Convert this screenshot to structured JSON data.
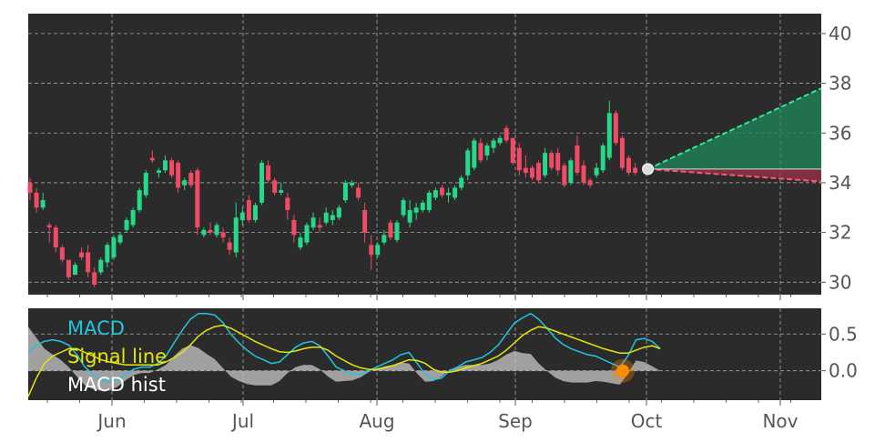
{
  "chart_data": [
    {
      "type": "candlestick",
      "title": "",
      "x_tick_labels": [
        "Jun",
        "Jul",
        "Aug",
        "Sep",
        "Oct",
        "Nov"
      ],
      "y_tick_labels": [
        "30",
        "32",
        "34",
        "36",
        "38",
        "40"
      ],
      "ylim": [
        29.5,
        40.8
      ],
      "grid": true,
      "y_axis_side": "right",
      "colors": {
        "up": "#26d98a",
        "down": "#f04a65",
        "background": "#2b2b2b",
        "grid": "#a8a8a8"
      },
      "candles": [
        {
          "o": 34.0,
          "h": 34.2,
          "l": 33.3,
          "c": 33.6
        },
        {
          "o": 33.6,
          "h": 33.8,
          "l": 32.8,
          "c": 33.0
        },
        {
          "o": 33.0,
          "h": 33.6,
          "l": 32.9,
          "c": 33.3
        },
        {
          "o": 32.3,
          "h": 32.4,
          "l": 31.6,
          "c": 32.2
        },
        {
          "o": 32.2,
          "h": 32.3,
          "l": 31.2,
          "c": 31.4
        },
        {
          "o": 31.4,
          "h": 31.5,
          "l": 30.8,
          "c": 30.9
        },
        {
          "o": 30.9,
          "h": 30.9,
          "l": 30.1,
          "c": 30.2
        },
        {
          "o": 30.3,
          "h": 30.8,
          "l": 30.3,
          "c": 30.7
        },
        {
          "o": 31.2,
          "h": 31.4,
          "l": 30.9,
          "c": 31.0
        },
        {
          "o": 31.2,
          "h": 31.5,
          "l": 30.2,
          "c": 30.4
        },
        {
          "o": 30.4,
          "h": 30.6,
          "l": 29.8,
          "c": 29.9
        },
        {
          "o": 30.4,
          "h": 31.0,
          "l": 30.3,
          "c": 30.9
        },
        {
          "o": 30.8,
          "h": 31.6,
          "l": 30.6,
          "c": 31.5
        },
        {
          "o": 31.0,
          "h": 31.9,
          "l": 30.9,
          "c": 31.8
        },
        {
          "o": 31.6,
          "h": 32.0,
          "l": 31.5,
          "c": 31.9
        },
        {
          "o": 32.1,
          "h": 32.6,
          "l": 32.0,
          "c": 32.5
        },
        {
          "o": 32.3,
          "h": 33.0,
          "l": 32.2,
          "c": 32.9
        },
        {
          "o": 32.9,
          "h": 33.8,
          "l": 32.8,
          "c": 33.7
        },
        {
          "o": 33.5,
          "h": 34.5,
          "l": 33.4,
          "c": 34.4
        },
        {
          "o": 35.0,
          "h": 35.3,
          "l": 34.8,
          "c": 34.9
        },
        {
          "o": 34.4,
          "h": 34.6,
          "l": 34.2,
          "c": 34.5
        },
        {
          "o": 34.5,
          "h": 35.1,
          "l": 34.4,
          "c": 34.9
        },
        {
          "o": 34.9,
          "h": 35.0,
          "l": 34.2,
          "c": 34.3
        },
        {
          "o": 34.8,
          "h": 34.9,
          "l": 33.6,
          "c": 33.8
        },
        {
          "o": 33.9,
          "h": 34.2,
          "l": 33.7,
          "c": 34.1
        },
        {
          "o": 34.4,
          "h": 34.5,
          "l": 33.8,
          "c": 33.9
        },
        {
          "o": 34.5,
          "h": 34.6,
          "l": 31.9,
          "c": 32.2
        },
        {
          "o": 31.9,
          "h": 32.2,
          "l": 31.8,
          "c": 32.1
        },
        {
          "o": 32.1,
          "h": 32.4,
          "l": 31.9,
          "c": 32.0
        },
        {
          "o": 31.9,
          "h": 32.4,
          "l": 31.8,
          "c": 32.3
        },
        {
          "o": 32.0,
          "h": 32.2,
          "l": 31.6,
          "c": 31.8
        },
        {
          "o": 31.6,
          "h": 31.8,
          "l": 31.1,
          "c": 31.3
        },
        {
          "o": 31.2,
          "h": 33.2,
          "l": 31.0,
          "c": 32.6
        },
        {
          "o": 32.5,
          "h": 33.0,
          "l": 32.3,
          "c": 32.8
        },
        {
          "o": 33.3,
          "h": 33.5,
          "l": 32.4,
          "c": 32.5
        },
        {
          "o": 32.5,
          "h": 33.2,
          "l": 32.4,
          "c": 33.1
        },
        {
          "o": 33.2,
          "h": 34.9,
          "l": 33.1,
          "c": 34.8
        },
        {
          "o": 34.7,
          "h": 34.9,
          "l": 34.0,
          "c": 34.1
        },
        {
          "o": 34.1,
          "h": 34.2,
          "l": 33.5,
          "c": 33.6
        },
        {
          "o": 33.6,
          "h": 34.0,
          "l": 33.5,
          "c": 33.7
        },
        {
          "o": 33.4,
          "h": 33.6,
          "l": 32.5,
          "c": 32.9
        },
        {
          "o": 32.5,
          "h": 32.7,
          "l": 31.6,
          "c": 31.9
        },
        {
          "o": 31.4,
          "h": 32.0,
          "l": 31.3,
          "c": 31.8
        },
        {
          "o": 31.6,
          "h": 32.4,
          "l": 31.5,
          "c": 32.3
        },
        {
          "o": 32.2,
          "h": 32.8,
          "l": 32.1,
          "c": 32.6
        },
        {
          "o": 32.3,
          "h": 32.6,
          "l": 32.0,
          "c": 32.2
        },
        {
          "o": 32.4,
          "h": 33.0,
          "l": 32.3,
          "c": 32.8
        },
        {
          "o": 32.5,
          "h": 32.9,
          "l": 32.3,
          "c": 32.7
        },
        {
          "o": 32.6,
          "h": 33.1,
          "l": 32.5,
          "c": 33.0
        },
        {
          "o": 33.3,
          "h": 34.1,
          "l": 33.2,
          "c": 34.0
        },
        {
          "o": 33.9,
          "h": 34.1,
          "l": 33.8,
          "c": 34.0
        },
        {
          "o": 33.8,
          "h": 34.0,
          "l": 33.3,
          "c": 33.4
        },
        {
          "o": 32.9,
          "h": 33.2,
          "l": 31.6,
          "c": 32.0
        },
        {
          "o": 31.5,
          "h": 31.9,
          "l": 30.5,
          "c": 31.1
        },
        {
          "o": 31.1,
          "h": 31.6,
          "l": 31.0,
          "c": 31.5
        },
        {
          "o": 31.6,
          "h": 32.1,
          "l": 31.5,
          "c": 31.9
        },
        {
          "o": 32.4,
          "h": 32.5,
          "l": 31.7,
          "c": 31.8
        },
        {
          "o": 31.7,
          "h": 32.5,
          "l": 31.6,
          "c": 32.4
        },
        {
          "o": 32.7,
          "h": 33.4,
          "l": 32.6,
          "c": 33.3
        },
        {
          "o": 32.4,
          "h": 33.3,
          "l": 32.2,
          "c": 32.9
        },
        {
          "o": 32.8,
          "h": 33.2,
          "l": 32.5,
          "c": 33.0
        },
        {
          "o": 32.9,
          "h": 33.3,
          "l": 32.8,
          "c": 33.2
        },
        {
          "o": 32.9,
          "h": 33.7,
          "l": 32.8,
          "c": 33.6
        },
        {
          "o": 33.4,
          "h": 33.8,
          "l": 33.3,
          "c": 33.7
        },
        {
          "o": 33.8,
          "h": 33.9,
          "l": 33.4,
          "c": 33.5
        },
        {
          "o": 33.5,
          "h": 33.8,
          "l": 33.2,
          "c": 33.6
        },
        {
          "o": 33.4,
          "h": 33.9,
          "l": 33.3,
          "c": 33.8
        },
        {
          "o": 33.8,
          "h": 34.3,
          "l": 33.7,
          "c": 34.2
        },
        {
          "o": 34.3,
          "h": 35.4,
          "l": 34.1,
          "c": 35.3
        },
        {
          "o": 34.6,
          "h": 35.8,
          "l": 34.5,
          "c": 35.7
        },
        {
          "o": 35.6,
          "h": 35.8,
          "l": 34.8,
          "c": 34.9
        },
        {
          "o": 35.1,
          "h": 35.6,
          "l": 34.9,
          "c": 35.5
        },
        {
          "o": 35.4,
          "h": 35.8,
          "l": 35.2,
          "c": 35.7
        },
        {
          "o": 35.6,
          "h": 35.9,
          "l": 35.5,
          "c": 35.8
        },
        {
          "o": 36.2,
          "h": 36.3,
          "l": 35.6,
          "c": 35.7
        },
        {
          "o": 35.8,
          "h": 35.8,
          "l": 34.7,
          "c": 34.8
        },
        {
          "o": 35.4,
          "h": 35.6,
          "l": 34.3,
          "c": 34.5
        },
        {
          "o": 34.6,
          "h": 35.1,
          "l": 34.2,
          "c": 34.4
        },
        {
          "o": 34.6,
          "h": 34.7,
          "l": 34.1,
          "c": 34.2
        },
        {
          "o": 34.8,
          "h": 34.9,
          "l": 34.0,
          "c": 34.1
        },
        {
          "o": 34.3,
          "h": 35.4,
          "l": 34.2,
          "c": 35.2
        },
        {
          "o": 35.2,
          "h": 35.3,
          "l": 34.5,
          "c": 34.6
        },
        {
          "o": 35.2,
          "h": 35.4,
          "l": 34.3,
          "c": 34.5
        },
        {
          "o": 34.7,
          "h": 34.8,
          "l": 33.8,
          "c": 33.9
        },
        {
          "o": 34.0,
          "h": 35.0,
          "l": 33.9,
          "c": 34.9
        },
        {
          "o": 35.5,
          "h": 35.9,
          "l": 34.3,
          "c": 34.4
        },
        {
          "o": 34.7,
          "h": 34.9,
          "l": 33.9,
          "c": 34.0
        },
        {
          "o": 34.1,
          "h": 34.2,
          "l": 33.8,
          "c": 33.9
        },
        {
          "o": 34.3,
          "h": 34.8,
          "l": 34.2,
          "c": 34.6
        },
        {
          "o": 34.5,
          "h": 35.6,
          "l": 34.4,
          "c": 35.5
        },
        {
          "o": 35.0,
          "h": 37.3,
          "l": 34.9,
          "c": 36.8
        },
        {
          "o": 36.8,
          "h": 36.9,
          "l": 35.5,
          "c": 35.6
        },
        {
          "o": 35.8,
          "h": 35.9,
          "l": 34.5,
          "c": 34.6
        },
        {
          "o": 35.0,
          "h": 35.1,
          "l": 34.3,
          "c": 34.4
        },
        {
          "o": 34.6,
          "h": 34.8,
          "l": 34.3,
          "c": 34.4
        }
      ],
      "forecast": {
        "last": 34.55,
        "upper_end": 37.8,
        "lower_end": 34.05,
        "band_up": 34.55,
        "band_low": 34.55
      }
    },
    {
      "type": "line",
      "title": "",
      "legend": {
        "placement": "top-left",
        "entries": [
          "MACD",
          "Signal line",
          "MACD hist"
        ]
      },
      "y_tick_labels": [
        "0.0",
        "0.5"
      ],
      "ylim": [
        -0.4,
        0.85
      ],
      "y_axis_side": "right",
      "colors": {
        "macd": "#1fc6e0",
        "signal": "#e6e60f",
        "hist": "#c8c8c8",
        "marker": "#ff8c00"
      },
      "series": [
        {
          "values": [
            0.25,
            0.35,
            0.4,
            0.42,
            0.4,
            0.35,
            0.22,
            0.05,
            -0.05,
            -0.12,
            -0.15,
            -0.12,
            -0.05,
            0.02,
            0.05,
            0.05,
            0.1,
            0.2,
            0.38,
            0.55,
            0.7,
            0.78,
            0.78,
            0.76,
            0.66,
            0.5,
            0.38,
            0.28,
            0.2,
            0.15,
            0.1,
            0.12,
            0.22,
            0.32,
            0.38,
            0.4,
            0.34,
            0.2,
            0.05,
            0.0,
            -0.05,
            -0.05,
            0.0,
            0.05,
            0.1,
            0.15,
            0.22,
            0.25,
            0.1,
            -0.05,
            -0.12,
            -0.1,
            0.0,
            0.05,
            0.12,
            0.15,
            0.18,
            0.25,
            0.35,
            0.5,
            0.65,
            0.72,
            0.78,
            0.7,
            0.58,
            0.45,
            0.36,
            0.3,
            0.26,
            0.22,
            0.2,
            0.15,
            0.1,
            0.05,
            0.2,
            0.42,
            0.44,
            0.4,
            0.3
          ]
        },
        {
          "values": [
            -0.35,
            -0.1,
            0.1,
            0.2,
            0.25,
            0.3,
            0.3,
            0.25,
            0.2,
            0.15,
            0.12,
            0.1,
            0.08,
            0.08,
            0.08,
            0.08,
            0.08,
            0.12,
            0.18,
            0.25,
            0.35,
            0.47,
            0.55,
            0.6,
            0.62,
            0.58,
            0.52,
            0.46,
            0.4,
            0.35,
            0.3,
            0.26,
            0.25,
            0.27,
            0.3,
            0.32,
            0.32,
            0.28,
            0.2,
            0.14,
            0.08,
            0.04,
            0.02,
            0.02,
            0.04,
            0.07,
            0.11,
            0.15,
            0.14,
            0.1,
            0.02,
            -0.02,
            -0.02,
            0.0,
            0.04,
            0.07,
            0.1,
            0.15,
            0.2,
            0.28,
            0.38,
            0.48,
            0.55,
            0.6,
            0.58,
            0.54,
            0.5,
            0.46,
            0.42,
            0.38,
            0.34,
            0.3,
            0.27,
            0.24,
            0.24,
            0.28,
            0.32,
            0.34,
            0.3
          ]
        },
        {
          "values": [
            0.6,
            0.45,
            0.3,
            0.22,
            0.15,
            0.05,
            -0.08,
            -0.2,
            -0.25,
            -0.27,
            -0.27,
            -0.22,
            -0.13,
            -0.06,
            -0.03,
            -0.03,
            0.02,
            0.08,
            0.2,
            0.3,
            0.35,
            0.31,
            0.23,
            0.16,
            0.04,
            -0.08,
            -0.14,
            -0.18,
            -0.2,
            -0.2,
            -0.2,
            -0.14,
            -0.03,
            0.05,
            0.08,
            0.08,
            0.02,
            -0.08,
            -0.15,
            -0.14,
            -0.13,
            -0.09,
            -0.02,
            0.03,
            0.06,
            0.08,
            0.11,
            0.1,
            -0.04,
            -0.15,
            -0.14,
            -0.08,
            0.02,
            0.05,
            0.08,
            0.08,
            0.08,
            0.1,
            0.15,
            0.22,
            0.27,
            0.24,
            0.23,
            0.1,
            0.0,
            -0.09,
            -0.14,
            -0.16,
            -0.16,
            -0.16,
            -0.14,
            -0.15,
            -0.17,
            -0.19,
            -0.04,
            0.14,
            0.12,
            0.06,
            0.0
          ]
        }
      ],
      "crossover_marker": {
        "value": 0.0
      }
    }
  ],
  "x_axis": {
    "labels": [
      "Jun",
      "Jul",
      "Aug",
      "Sep",
      "Oct",
      "Nov"
    ]
  }
}
